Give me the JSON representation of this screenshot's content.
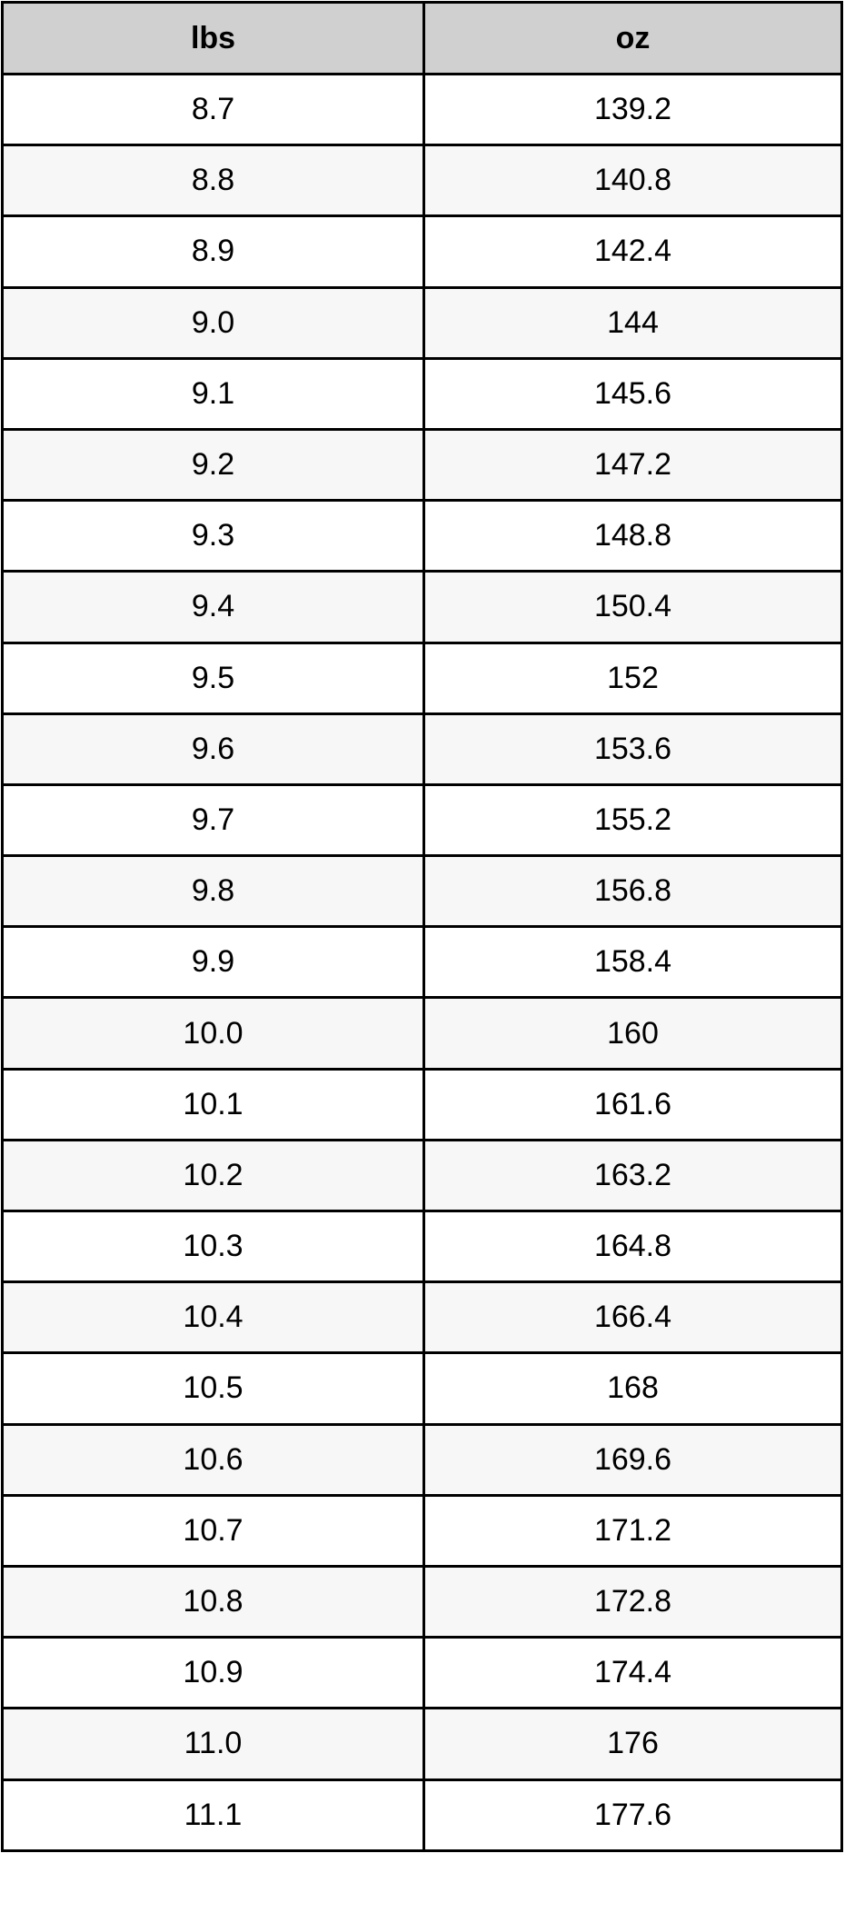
{
  "table": {
    "headers": [
      "lbs",
      "oz"
    ],
    "rows": [
      [
        "8.7",
        "139.2"
      ],
      [
        "8.8",
        "140.8"
      ],
      [
        "8.9",
        "142.4"
      ],
      [
        "9.0",
        "144"
      ],
      [
        "9.1",
        "145.6"
      ],
      [
        "9.2",
        "147.2"
      ],
      [
        "9.3",
        "148.8"
      ],
      [
        "9.4",
        "150.4"
      ],
      [
        "9.5",
        "152"
      ],
      [
        "9.6",
        "153.6"
      ],
      [
        "9.7",
        "155.2"
      ],
      [
        "9.8",
        "156.8"
      ],
      [
        "9.9",
        "158.4"
      ],
      [
        "10.0",
        "160"
      ],
      [
        "10.1",
        "161.6"
      ],
      [
        "10.2",
        "163.2"
      ],
      [
        "10.3",
        "164.8"
      ],
      [
        "10.4",
        "166.4"
      ],
      [
        "10.5",
        "168"
      ],
      [
        "10.6",
        "169.6"
      ],
      [
        "10.7",
        "171.2"
      ],
      [
        "10.8",
        "172.8"
      ],
      [
        "10.9",
        "174.4"
      ],
      [
        "11.0",
        "176"
      ],
      [
        "11.1",
        "177.6"
      ]
    ]
  },
  "colors": {
    "header_bg": "#d0d0d0",
    "alt_row_bg": "#f7f7f7",
    "border": "#000000"
  }
}
